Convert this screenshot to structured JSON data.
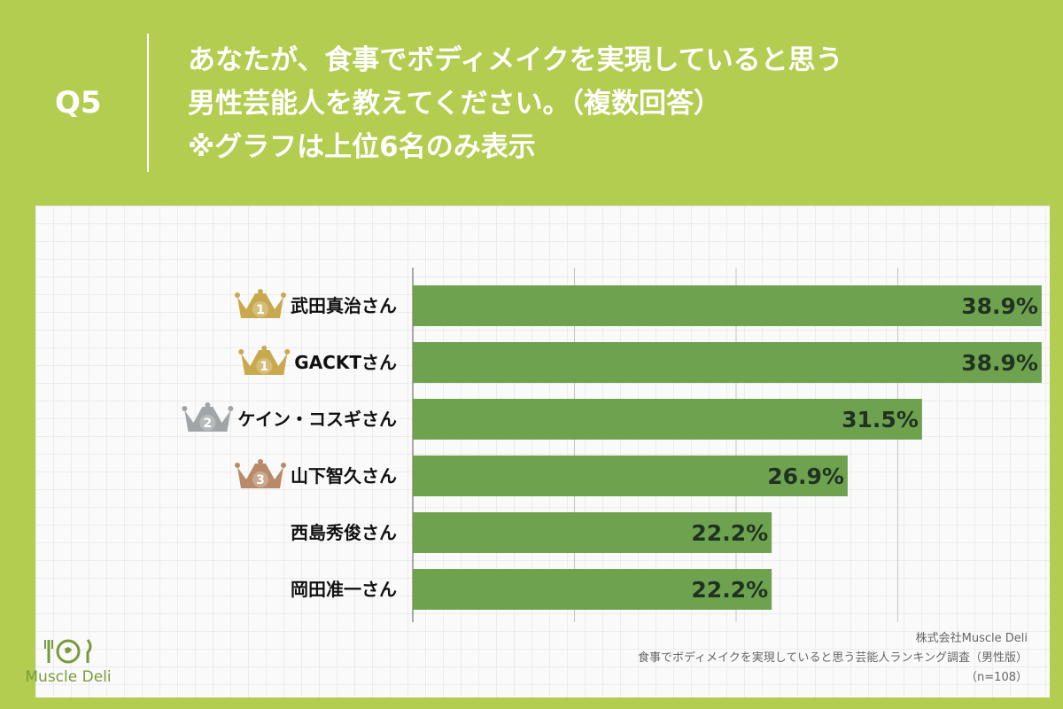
{
  "header": {
    "q_label": "Q5",
    "title_lines": [
      "あなたが、食事でボディメイクを実現していると思う",
      "男性芸能人を教えてください。（複数回答）",
      "※グラフは上位6名のみ表示"
    ]
  },
  "chart_data": {
    "type": "bar",
    "orientation": "horizontal",
    "categories": [
      "武田真治さん",
      "GACKTさん",
      "ケイン・コスギさん",
      "山下智久さん",
      "西島秀俊さん",
      "岡田准一さん"
    ],
    "values": [
      38.9,
      38.9,
      31.5,
      26.9,
      22.2,
      22.2
    ],
    "value_labels": [
      "38.9%",
      "38.9%",
      "31.5%",
      "26.9%",
      "22.2%",
      "22.2%"
    ],
    "ranks": [
      1,
      1,
      2,
      3,
      null,
      null
    ],
    "unit": "%",
    "xlim": [
      0,
      40
    ],
    "grid": true,
    "bar_color": "#6fa24f"
  },
  "colors": {
    "background": "#b2cd50",
    "bar": "#6fa24f",
    "gold": "#c8a94e",
    "silver": "#a0a5a8",
    "bronze": "#b98a6a"
  },
  "logo": {
    "text": "Muscle Deli",
    "icon": "fork-plate-knife-icon"
  },
  "source": {
    "lines": [
      "株式会社Muscle Deli",
      "食事でボディメイクを実現していると思う芸能人ランキング調査（男性版）",
      "（n=108）"
    ]
  }
}
